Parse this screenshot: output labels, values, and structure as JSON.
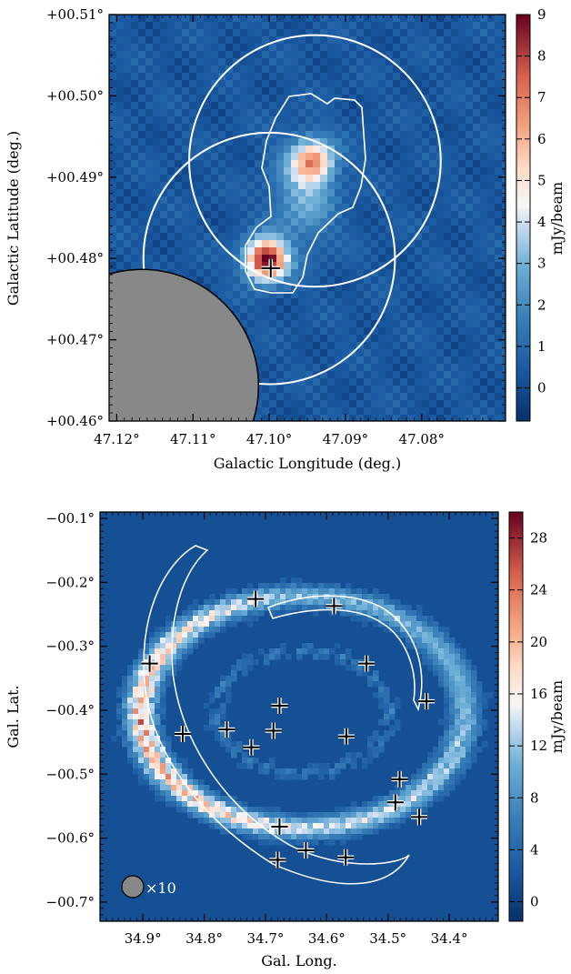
{
  "chart_data": [
    {
      "type": "heatmap",
      "panel": "top",
      "xlabel": "Galactic Longitude (deg.)",
      "ylabel": "Galactic Latitude (deg.)",
      "xlim": [
        47.121,
        47.069
      ],
      "ylim": [
        0.46,
        0.51
      ],
      "x_ticks": [
        47.12,
        47.11,
        47.1,
        47.09,
        47.08
      ],
      "x_tick_labels": [
        "47.12°",
        "47.11°",
        "47.10°",
        "47.09°",
        "47.08°"
      ],
      "y_ticks": [
        0.46,
        0.47,
        0.48,
        0.49,
        0.5,
        0.51
      ],
      "y_tick_labels": [
        "+00.46°",
        "+00.47°",
        "+00.48°",
        "+00.49°",
        "+00.50°",
        "+00.51°"
      ],
      "colorbar": {
        "label": "mJy/beam",
        "min": -0.8,
        "max": 9,
        "ticks": [
          0,
          1,
          2,
          3,
          4,
          5,
          6,
          7,
          8,
          9
        ],
        "tick_labels": [
          "0",
          "1",
          "2",
          "3",
          "4",
          "5",
          "6",
          "7",
          "8",
          "9"
        ]
      },
      "sources": [
        {
          "l": 47.1004,
          "b": 0.4798,
          "peak": 9.0
        },
        {
          "l": 47.0942,
          "b": 0.492,
          "peak": 5.2
        }
      ],
      "markers": [
        {
          "l": 47.0998,
          "b": 0.4788
        }
      ],
      "circles": [
        {
          "l": 47.1,
          "b": 0.48,
          "r": 0.0165
        },
        {
          "l": 47.094,
          "b": 0.492,
          "r": 0.0165
        }
      ],
      "beam": {
        "l": 47.1167,
        "b": 0.4643,
        "r": 0.0017
      }
    },
    {
      "type": "heatmap",
      "panel": "bottom",
      "xlabel": "Gal. Long.",
      "ylabel": "Gal. Lat.",
      "xlim": [
        34.97,
        34.32
      ],
      "ylim": [
        -0.73,
        -0.09
      ],
      "x_ticks": [
        34.9,
        34.8,
        34.7,
        34.6,
        34.5,
        34.4
      ],
      "x_tick_labels": [
        "34.9°",
        "34.8°",
        "34.7°",
        "34.6°",
        "34.5°",
        "34.4°"
      ],
      "y_ticks": [
        -0.1,
        -0.2,
        -0.3,
        -0.4,
        -0.5,
        -0.6,
        -0.7
      ],
      "y_tick_labels": [
        "−00.1°",
        "−00.2°",
        "−00.3°",
        "−00.4°",
        "−00.5°",
        "−00.6°",
        "−00.7°"
      ],
      "colorbar": {
        "label": "mJy/beam",
        "min": -1.5,
        "max": 30,
        "ticks": [
          0,
          4,
          8,
          12,
          16,
          20,
          24,
          28
        ],
        "tick_labels": [
          "0",
          "4",
          "8",
          "12",
          "16",
          "20",
          "24",
          "28"
        ]
      },
      "markers": [
        {
          "l": 34.889,
          "b": -0.327
        },
        {
          "l": 34.835,
          "b": -0.437
        },
        {
          "l": 34.763,
          "b": -0.43
        },
        {
          "l": 34.716,
          "b": -0.226
        },
        {
          "l": 34.723,
          "b": -0.458
        },
        {
          "l": 34.687,
          "b": -0.432
        },
        {
          "l": 34.677,
          "b": -0.393
        },
        {
          "l": 34.677,
          "b": -0.582
        },
        {
          "l": 34.68,
          "b": -0.634
        },
        {
          "l": 34.634,
          "b": -0.619
        },
        {
          "l": 34.588,
          "b": -0.237
        },
        {
          "l": 34.568,
          "b": -0.441
        },
        {
          "l": 34.569,
          "b": -0.63
        },
        {
          "l": 34.535,
          "b": -0.327
        },
        {
          "l": 34.481,
          "b": -0.508
        },
        {
          "l": 34.488,
          "b": -0.544
        },
        {
          "l": 34.449,
          "b": -0.567
        },
        {
          "l": 34.437,
          "b": -0.386
        }
      ],
      "beam_label": "×10"
    }
  ]
}
